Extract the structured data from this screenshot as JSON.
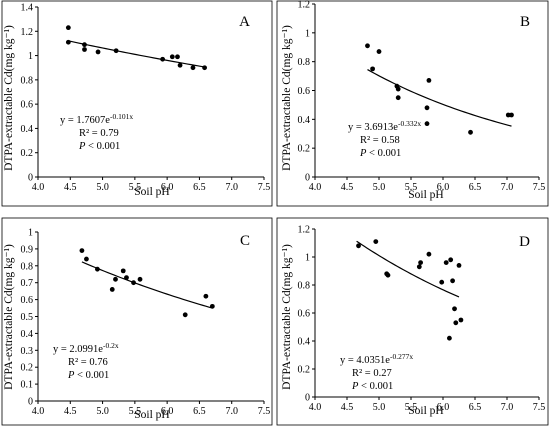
{
  "chart_data": [
    {
      "id": "A",
      "type": "scatter",
      "panel_label": "A",
      "xlabel": "Soil pH",
      "ylabel": "DTPA-extractable Cd(mg kg⁻¹)",
      "xlim": [
        4.0,
        7.5
      ],
      "ylim": [
        0,
        1.4
      ],
      "xticks": [
        4.0,
        4.5,
        5.0,
        5.5,
        6.0,
        6.5,
        7.0,
        7.5
      ],
      "yticks": [
        0,
        0.2,
        0.4,
        0.6,
        0.8,
        1.0,
        1.2,
        1.4
      ],
      "xtick_labels": [
        "4.0",
        "4.5",
        "5.0",
        "5.5",
        "6.0",
        "6.5",
        "7.0",
        "7.5"
      ],
      "ytick_labels": [
        "0",
        "0.2",
        "0.4",
        "0.6",
        "0.8",
        "1",
        "1.2",
        "1.4"
      ],
      "points": [
        [
          4.47,
          1.23
        ],
        [
          4.47,
          1.11
        ],
        [
          4.72,
          1.09
        ],
        [
          4.72,
          1.05
        ],
        [
          4.93,
          1.03
        ],
        [
          5.21,
          1.04
        ],
        [
          5.93,
          0.97
        ],
        [
          6.08,
          0.99
        ],
        [
          6.16,
          0.99
        ],
        [
          6.2,
          0.92
        ],
        [
          6.4,
          0.9
        ],
        [
          6.58,
          0.9
        ]
      ],
      "fit": {
        "a": 1.7607,
        "b": -0.101,
        "x_range": [
          4.47,
          6.58
        ]
      },
      "equation": {
        "prefix": "y = 1.7607e",
        "exponent": "-0.101x",
        "r2": "R² = 0.79",
        "p_label": "P",
        "p_rest": " < 0.001"
      }
    },
    {
      "id": "B",
      "type": "scatter",
      "panel_label": "B",
      "xlabel": "Soil pH",
      "ylabel": "DTPA-extractable Cd(mg kg⁻¹)",
      "xlim": [
        4.0,
        7.5
      ],
      "ylim": [
        0,
        1.2
      ],
      "xticks": [
        4.0,
        4.5,
        5.0,
        5.5,
        6.0,
        6.5,
        7.0,
        7.5
      ],
      "yticks": [
        0,
        0.2,
        0.4,
        0.6,
        0.8,
        1.0,
        1.2
      ],
      "xtick_labels": [
        "4.0",
        "4.5",
        "5.0",
        "5.5",
        "6.0",
        "6.5",
        "7.0",
        "7.5"
      ],
      "ytick_labels": [
        "0",
        "0.2",
        "0.4",
        "0.6",
        "0.8",
        "1",
        "1.2"
      ],
      "points": [
        [
          4.82,
          0.91
        ],
        [
          4.9,
          0.75
        ],
        [
          5.0,
          0.87
        ],
        [
          5.28,
          0.63
        ],
        [
          5.3,
          0.61
        ],
        [
          5.3,
          0.55
        ],
        [
          5.75,
          0.48
        ],
        [
          5.75,
          0.37
        ],
        [
          5.78,
          0.67
        ],
        [
          6.43,
          0.31
        ],
        [
          7.02,
          0.43
        ],
        [
          7.07,
          0.43
        ]
      ],
      "fit": {
        "a": 3.6913,
        "b": -0.332,
        "x_range": [
          4.82,
          7.07
        ]
      },
      "equation": {
        "prefix": "y = 3.6913e",
        "exponent": "-0.332x",
        "r2": "R² = 0.58",
        "p_label": "P",
        "p_rest": " < 0.001"
      }
    },
    {
      "id": "C",
      "type": "scatter",
      "panel_label": "C",
      "xlabel": "Soil pH",
      "ylabel": "DTPA-extractable Cd(mg kg⁻¹)",
      "xlim": [
        4.0,
        7.5
      ],
      "ylim": [
        0,
        1.0
      ],
      "xticks": [
        4.0,
        4.5,
        5.0,
        5.5,
        6.0,
        6.5,
        7.0,
        7.5
      ],
      "yticks": [
        0,
        0.1,
        0.2,
        0.3,
        0.4,
        0.5,
        0.6,
        0.7,
        0.8,
        0.9,
        1.0
      ],
      "xtick_labels": [
        "4.0",
        "4.5",
        "5.0",
        "5.5",
        "6.0",
        "6.5",
        "7.0",
        "7.5"
      ],
      "ytick_labels": [
        "0",
        "0.1",
        "0.2",
        "0.3",
        "0.4",
        "0.5",
        "0.6",
        "0.7",
        "0.8",
        "0.9",
        "1"
      ],
      "points": [
        [
          4.68,
          0.89
        ],
        [
          4.75,
          0.84
        ],
        [
          4.92,
          0.78
        ],
        [
          5.15,
          0.66
        ],
        [
          5.2,
          0.72
        ],
        [
          5.32,
          0.77
        ],
        [
          5.37,
          0.73
        ],
        [
          5.48,
          0.7
        ],
        [
          5.58,
          0.72
        ],
        [
          6.28,
          0.51
        ],
        [
          6.6,
          0.62
        ],
        [
          6.7,
          0.56
        ]
      ],
      "fit": {
        "a": 2.0991,
        "b": -0.2,
        "x_range": [
          4.68,
          6.7
        ]
      },
      "equation": {
        "prefix": "y = 2.0991e",
        "exponent": "-0.2x",
        "r2": "R² = 0.76",
        "p_label": "P",
        "p_rest": " < 0.001"
      }
    },
    {
      "id": "D",
      "type": "scatter",
      "panel_label": "D",
      "xlabel": "Soil pH",
      "ylabel": "DTPA-extractable Cd(mg kg⁻¹)",
      "xlim": [
        4.0,
        7.5
      ],
      "ylim": [
        0,
        1.2
      ],
      "xticks": [
        4.0,
        4.5,
        5.0,
        5.5,
        6.0,
        6.5,
        7.0,
        7.5
      ],
      "yticks": [
        0,
        0.2,
        0.4,
        0.6,
        0.8,
        1.0,
        1.2
      ],
      "xtick_labels": [
        "4.0",
        "4.5",
        "5.0",
        "5.5",
        "6.0",
        "6.5",
        "7.0",
        "7.5"
      ],
      "ytick_labels": [
        "0",
        "0.2",
        "0.4",
        "0.6",
        "0.8",
        "1",
        "1.2"
      ],
      "points": [
        [
          4.68,
          1.08
        ],
        [
          4.95,
          1.11
        ],
        [
          5.12,
          0.88
        ],
        [
          5.14,
          0.87
        ],
        [
          5.63,
          0.93
        ],
        [
          5.65,
          0.96
        ],
        [
          5.78,
          1.02
        ],
        [
          5.98,
          0.82
        ],
        [
          6.05,
          0.96
        ],
        [
          6.1,
          0.42
        ],
        [
          6.12,
          0.98
        ],
        [
          6.15,
          0.83
        ],
        [
          6.18,
          0.63
        ],
        [
          6.2,
          0.53
        ],
        [
          6.25,
          0.94
        ],
        [
          6.28,
          0.55
        ]
      ],
      "fit": {
        "a": 4.0351,
        "b": -0.277,
        "x_range": [
          4.65,
          6.25
        ]
      },
      "equation": {
        "prefix": "y = 4.0351e",
        "exponent": "-0.277x",
        "r2": "R² = 0.27",
        "p_label": "P",
        "p_rest": " < 0.001"
      }
    }
  ]
}
